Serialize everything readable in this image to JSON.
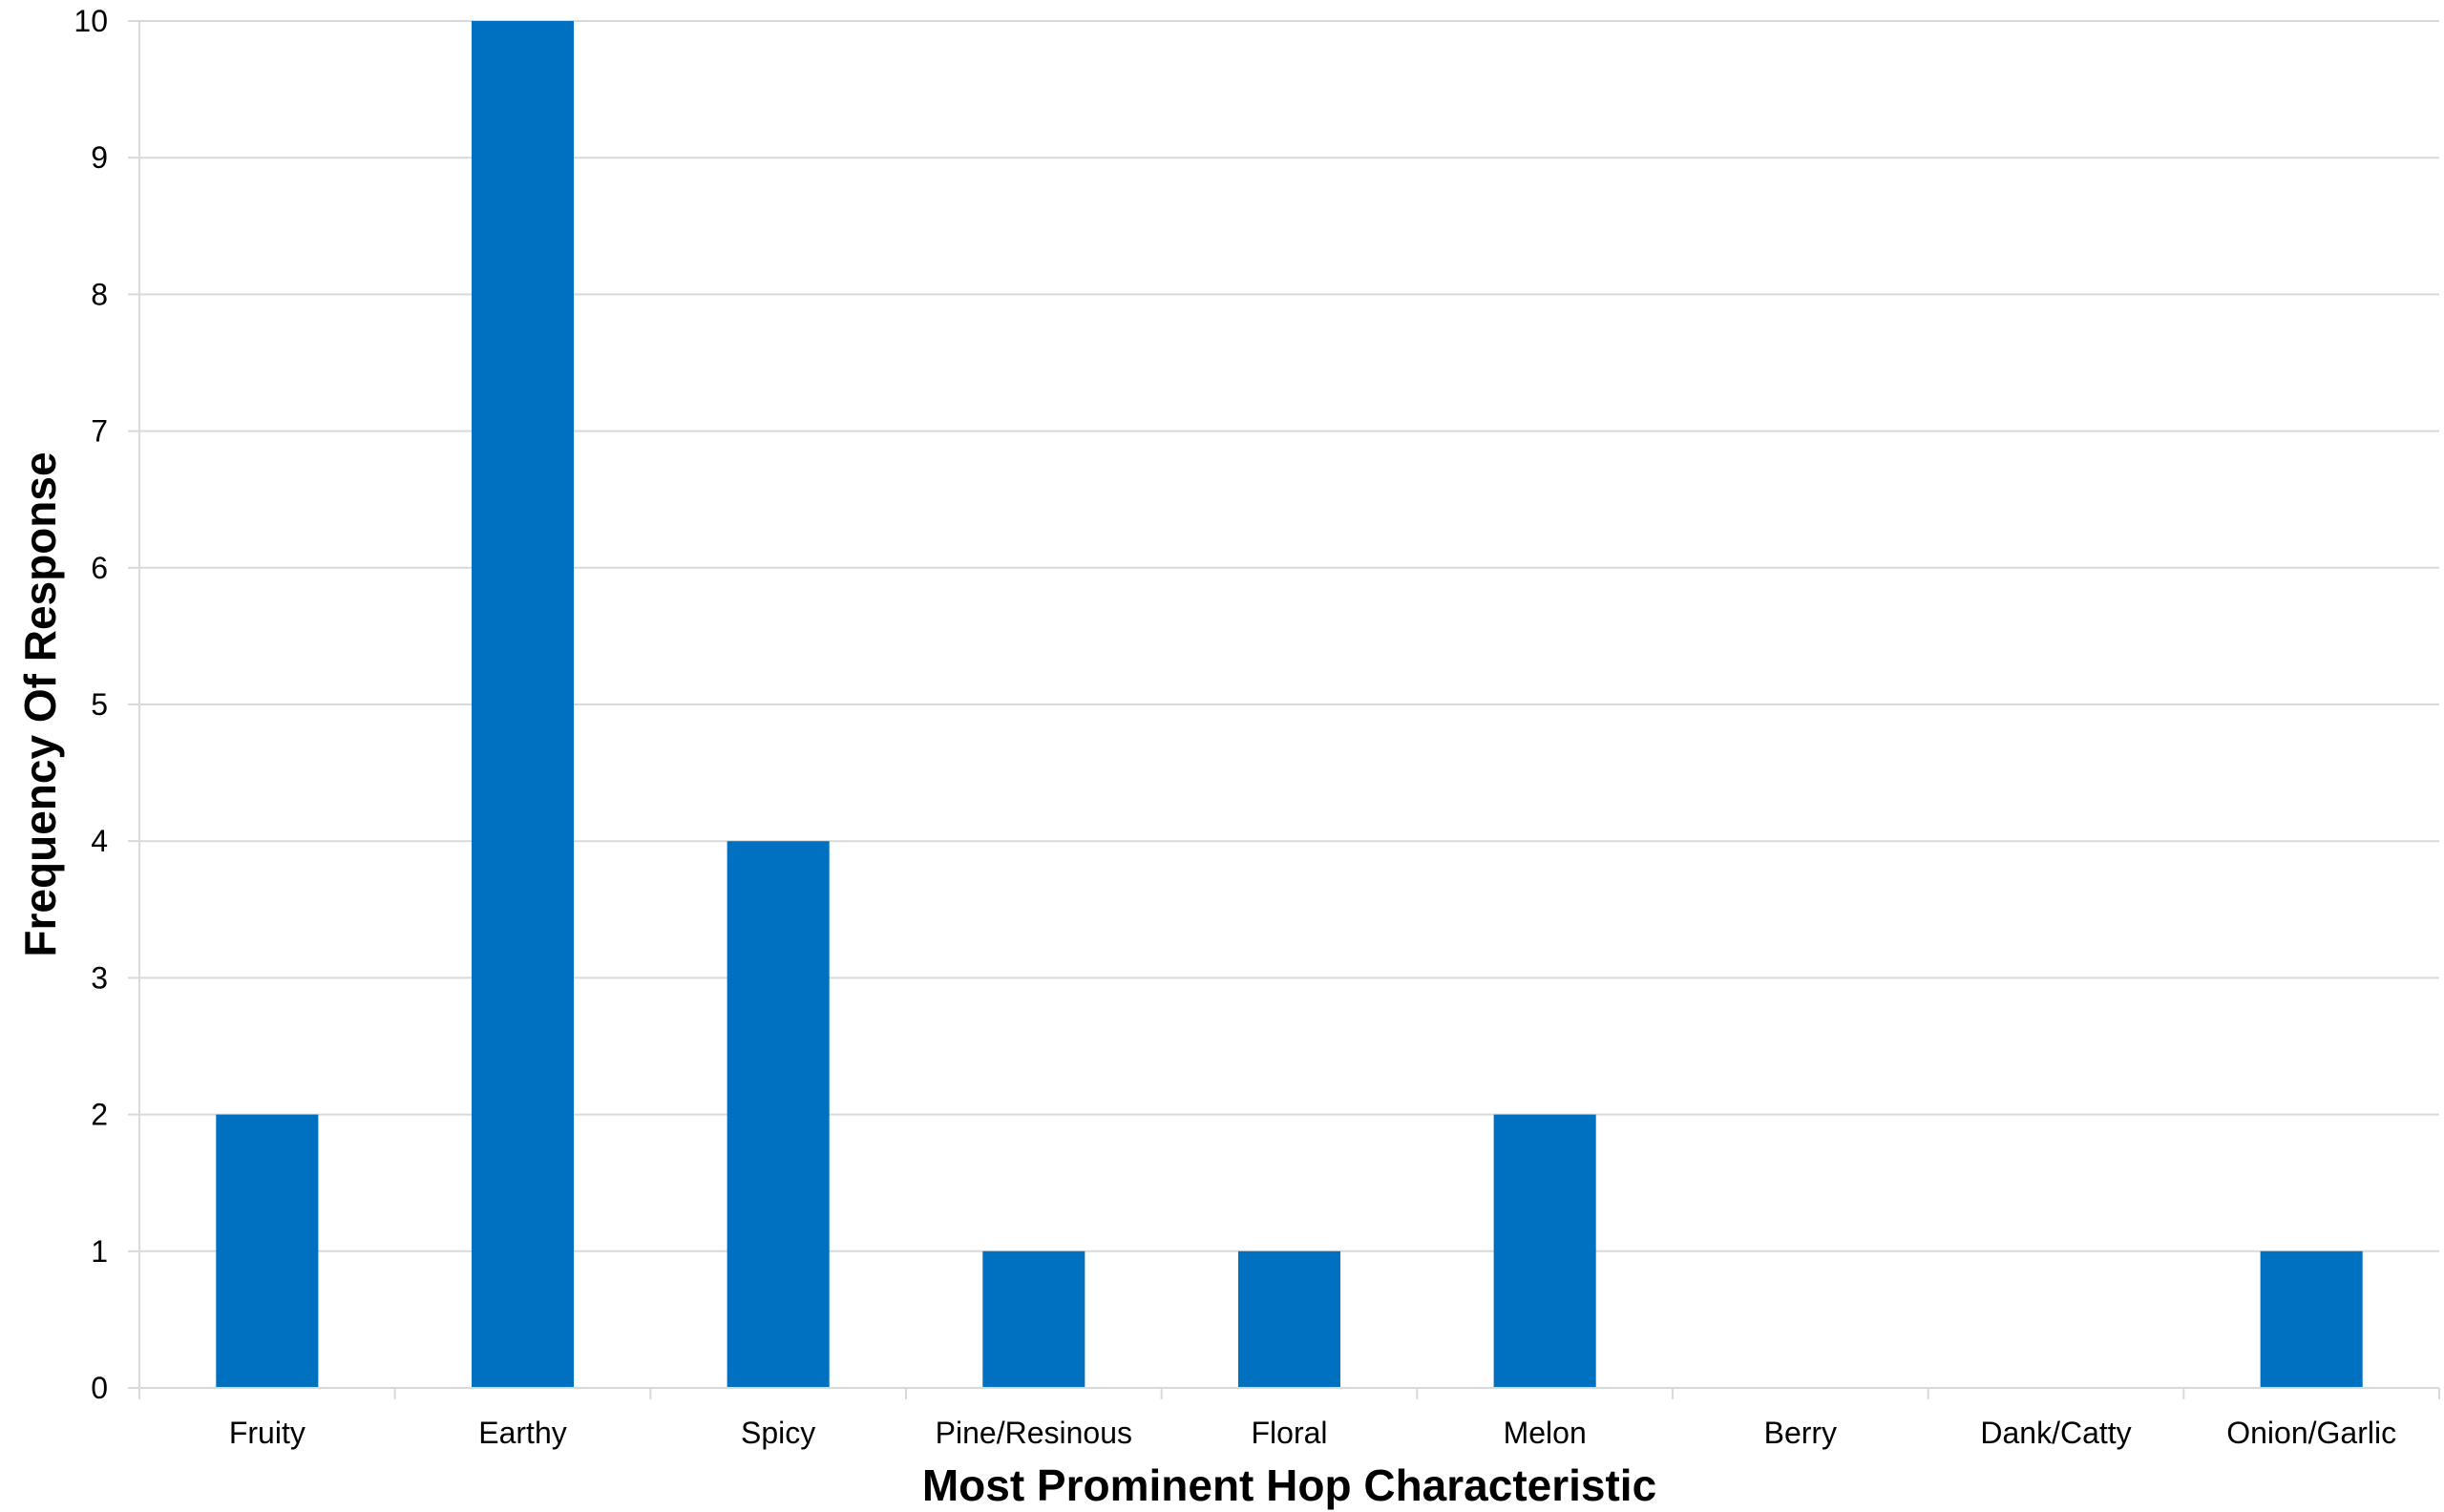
{
  "chart_data": {
    "type": "bar",
    "categories": [
      "Fruity",
      "Earthy",
      "Spicy",
      "Pine/Resinous",
      "Floral",
      "Melon",
      "Berry",
      "Dank/Catty",
      "Onion/Garlic"
    ],
    "values": [
      2,
      10,
      4,
      1,
      1,
      2,
      0,
      0,
      1
    ],
    "xlabel": "Most Prominent Hop Characteristic",
    "ylabel": "Frequency Of Response",
    "ylim": [
      0,
      10
    ],
    "yticks": [
      "0",
      "1",
      "2",
      "3",
      "4",
      "5",
      "6",
      "7",
      "8",
      "9",
      "10"
    ],
    "grid": true,
    "bar_color": "#0070C0",
    "grid_color": "#D9D9D9"
  }
}
